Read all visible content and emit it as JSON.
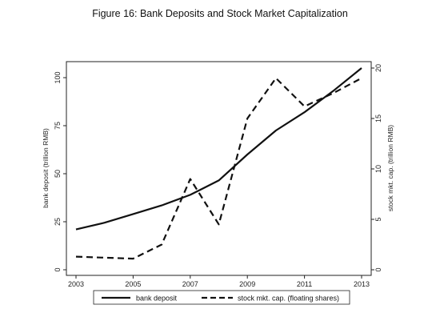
{
  "chart_data": {
    "type": "line",
    "title": "Figure 16: Bank Deposits and Stock Market Capitalization",
    "x": [
      2003,
      2004,
      2005,
      2006,
      2007,
      2008,
      2009,
      2010,
      2011,
      2012,
      2013
    ],
    "xticks": [
      "2003",
      "2005",
      "2007",
      "2009",
      "2011",
      "2013"
    ],
    "xlim": [
      2003,
      2013
    ],
    "y_left": {
      "label": "bank deposit (trillion RMB)",
      "ticks": [
        "0",
        "25",
        "50",
        "75",
        "100"
      ],
      "lim": [
        0,
        105
      ]
    },
    "y_right": {
      "label": "stock mkt. cap. (trillion RMB)",
      "ticks": [
        "0",
        "5",
        "10",
        "15",
        "20"
      ],
      "lim": [
        0,
        20
      ]
    },
    "series": [
      {
        "name": "bank deposit",
        "axis": "left",
        "style": "solid",
        "values": [
          21,
          24.5,
          29,
          33.5,
          39,
          46.5,
          60,
          72.5,
          82,
          93,
          105
        ]
      },
      {
        "name": "stock mkt. cap. (floating shares)",
        "axis": "right",
        "style": "dashed",
        "values": [
          1.3,
          1.2,
          1.1,
          2.5,
          9.0,
          4.5,
          15.0,
          19.0,
          16.2,
          17.5,
          19.0
        ]
      }
    ],
    "legend_position": "bottom",
    "grid": false
  }
}
